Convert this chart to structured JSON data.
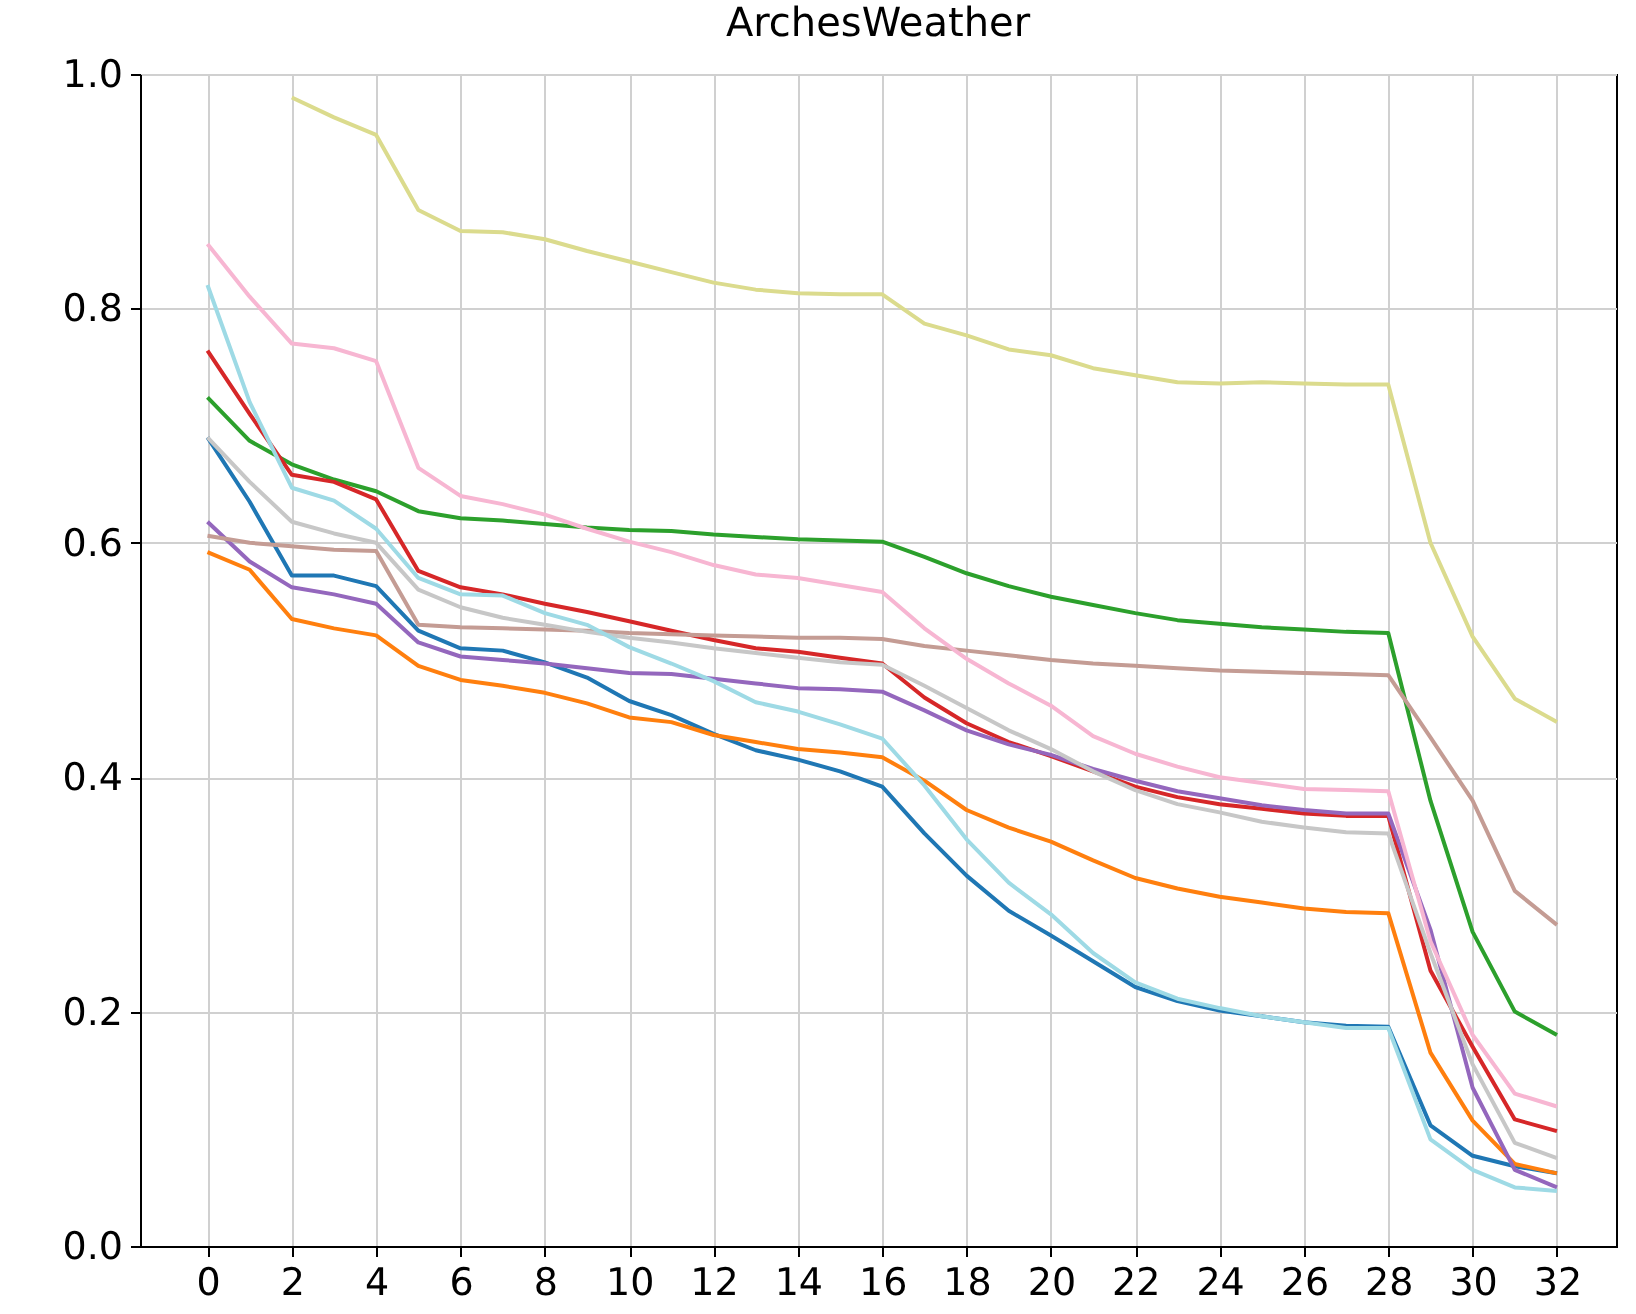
{
  "chart_data": {
    "type": "line",
    "title": "ArchesWeather",
    "x": [
      0,
      1,
      2,
      3,
      4,
      5,
      6,
      7,
      8,
      9,
      10,
      11,
      12,
      13,
      14,
      15,
      16,
      17,
      18,
      19,
      20,
      21,
      22,
      23,
      24,
      25,
      26,
      27,
      28,
      29,
      30,
      31,
      32
    ],
    "xlim": [
      -1.6,
      33.4
    ],
    "xticks": [
      0,
      2,
      4,
      6,
      8,
      10,
      12,
      14,
      16,
      18,
      20,
      22,
      24,
      26,
      28,
      30,
      32
    ],
    "ylim": [
      0,
      1
    ],
    "yticks": [
      {
        "value": 0,
        "label": "0.0"
      },
      {
        "value": 0.2,
        "label": "0.2"
      },
      {
        "value": 0.4,
        "label": "0.4"
      },
      {
        "value": 0.6,
        "label": "0.6"
      },
      {
        "value": 0.8,
        "label": "0.8"
      },
      {
        "value": 1,
        "label": "1.0"
      }
    ],
    "grid": true,
    "line_style": "solid",
    "marker": "none",
    "series": [
      {
        "color": "#1f77b4",
        "values": [
          0.69,
          0.635,
          0.572,
          0.572,
          0.563,
          0.525,
          0.51,
          0.508,
          0.498,
          0.485,
          0.465,
          0.453,
          0.437,
          0.423,
          0.415,
          0.405,
          0.392,
          0.352,
          0.316,
          0.286,
          0.265,
          0.243,
          0.221,
          0.209,
          0.201,
          0.196,
          0.191,
          0.188,
          0.187,
          0.103,
          0.077,
          0.068,
          0.062
        ]
      },
      {
        "color": "#ff7f0e",
        "values": [
          0.592,
          0.577,
          0.535,
          0.527,
          0.521,
          0.495,
          0.483,
          0.478,
          0.472,
          0.463,
          0.451,
          0.447,
          0.436,
          0.43,
          0.424,
          0.421,
          0.417,
          0.397,
          0.372,
          0.357,
          0.345,
          0.329,
          0.314,
          0.305,
          0.298,
          0.293,
          0.288,
          0.285,
          0.284,
          0.165,
          0.107,
          0.07,
          0.062
        ]
      },
      {
        "color": "#2ca02c",
        "values": [
          0.724,
          0.687,
          0.667,
          0.654,
          0.644,
          0.627,
          0.621,
          0.619,
          0.616,
          0.613,
          0.611,
          0.61,
          0.607,
          0.605,
          0.603,
          0.602,
          0.601,
          0.588,
          0.574,
          0.563,
          0.554,
          0.547,
          0.54,
          0.534,
          0.531,
          0.528,
          0.526,
          0.524,
          0.523,
          0.38,
          0.268,
          0.2,
          0.18
        ]
      },
      {
        "color": "#d62728",
        "values": [
          0.764,
          0.71,
          0.658,
          0.652,
          0.637,
          0.576,
          0.562,
          0.556,
          0.548,
          0.541,
          0.533,
          0.525,
          0.517,
          0.51,
          0.507,
          0.502,
          0.497,
          0.468,
          0.446,
          0.43,
          0.418,
          0.405,
          0.392,
          0.383,
          0.377,
          0.373,
          0.369,
          0.367,
          0.367,
          0.235,
          0.17,
          0.108,
          0.098
        ]
      },
      {
        "color": "#9467bd",
        "values": [
          0.618,
          0.584,
          0.562,
          0.556,
          0.548,
          0.515,
          0.503,
          0.5,
          0.497,
          0.493,
          0.489,
          0.488,
          0.484,
          0.48,
          0.476,
          0.475,
          0.473,
          0.457,
          0.44,
          0.428,
          0.419,
          0.407,
          0.397,
          0.388,
          0.382,
          0.376,
          0.372,
          0.369,
          0.369,
          0.27,
          0.135,
          0.065,
          0.05
        ]
      },
      {
        "color": "#c49c94",
        "values": [
          0.606,
          0.6,
          0.597,
          0.594,
          0.593,
          0.53,
          0.528,
          0.527,
          0.526,
          0.525,
          0.523,
          0.522,
          0.521,
          0.52,
          0.519,
          0.519,
          0.518,
          0.512,
          0.508,
          0.504,
          0.5,
          0.497,
          0.495,
          0.493,
          0.491,
          0.49,
          0.489,
          0.488,
          0.487,
          0.434,
          0.38,
          0.303,
          0.274
        ]
      },
      {
        "color": "#f7b6d2",
        "values": [
          0.855,
          0.81,
          0.77,
          0.766,
          0.755,
          0.664,
          0.64,
          0.633,
          0.624,
          0.612,
          0.601,
          0.592,
          0.581,
          0.573,
          0.57,
          0.564,
          0.558,
          0.527,
          0.501,
          0.48,
          0.461,
          0.435,
          0.42,
          0.409,
          0.4,
          0.395,
          0.39,
          0.389,
          0.388,
          0.26,
          0.18,
          0.13,
          0.119
        ]
      },
      {
        "color": "#c7c7c7",
        "values": [
          0.69,
          0.652,
          0.618,
          0.608,
          0.6,
          0.56,
          0.545,
          0.536,
          0.53,
          0.524,
          0.519,
          0.515,
          0.51,
          0.506,
          0.502,
          0.498,
          0.496,
          0.478,
          0.459,
          0.44,
          0.424,
          0.405,
          0.389,
          0.377,
          0.37,
          0.362,
          0.357,
          0.353,
          0.352,
          0.25,
          0.155,
          0.088,
          0.075
        ]
      },
      {
        "color": "#dbdb8d",
        "values": [
          null,
          null,
          0.98,
          0.963,
          0.948,
          0.884,
          0.866,
          0.865,
          0.859,
          0.849,
          0.84,
          0.831,
          0.822,
          0.816,
          0.813,
          0.812,
          0.812,
          0.787,
          0.777,
          0.765,
          0.76,
          0.749,
          0.743,
          0.737,
          0.736,
          0.737,
          0.736,
          0.735,
          0.735,
          0.6,
          0.52,
          0.467,
          0.447
        ]
      },
      {
        "color": "#9edae5",
        "values": [
          0.82,
          0.72,
          0.647,
          0.636,
          0.612,
          0.57,
          0.556,
          0.555,
          0.54,
          0.53,
          0.511,
          0.497,
          0.482,
          0.464,
          0.456,
          0.445,
          0.433,
          0.393,
          0.347,
          0.31,
          0.283,
          0.25,
          0.225,
          0.211,
          0.203,
          0.196,
          0.191,
          0.186,
          0.186,
          0.091,
          0.065,
          0.05,
          0.047
        ]
      }
    ]
  }
}
